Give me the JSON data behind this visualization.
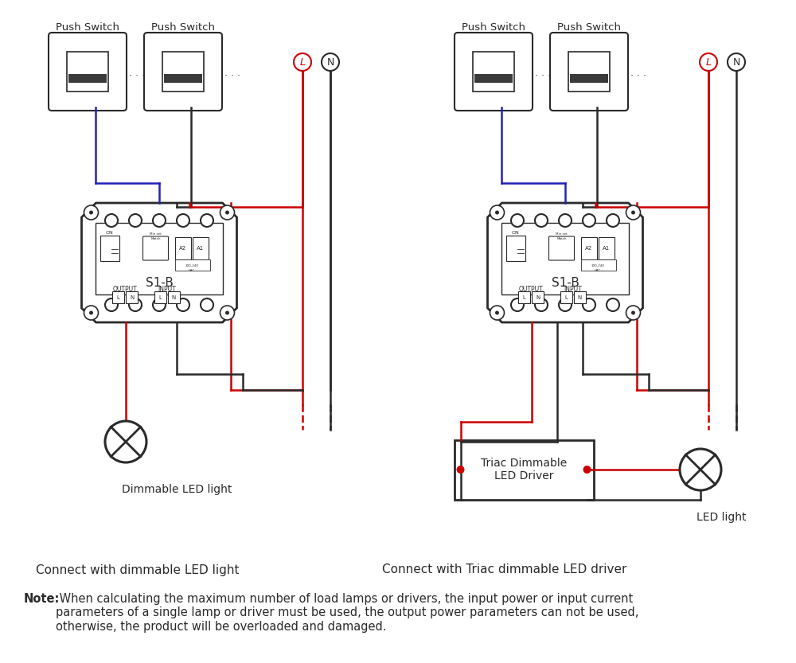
{
  "bg_color": "#ffffff",
  "line_color": "#2a2a2a",
  "red_color": "#cc0000",
  "blue_color": "#2222bb",
  "title_left": "Connect with dimmable LED light",
  "title_right": "Connect with Triac dimmable LED driver",
  "note_bold": "Note:",
  "note_text": " When calculating the maximum number of load lamps or drivers, the input power or input current\nparameters of a single lamp or driver must be used, the output power parameters can not be used,\notherwise, the product will be overloaded and damaged.",
  "push_switch_label": "Push Switch",
  "device_label": "S1-B",
  "dimmable_label": "Dimmable LED light",
  "led_label": "LED light",
  "triac_label": "Triac Dimmable\nLED Driver",
  "output_label": "OUTPUT",
  "input_label": "INPUT"
}
